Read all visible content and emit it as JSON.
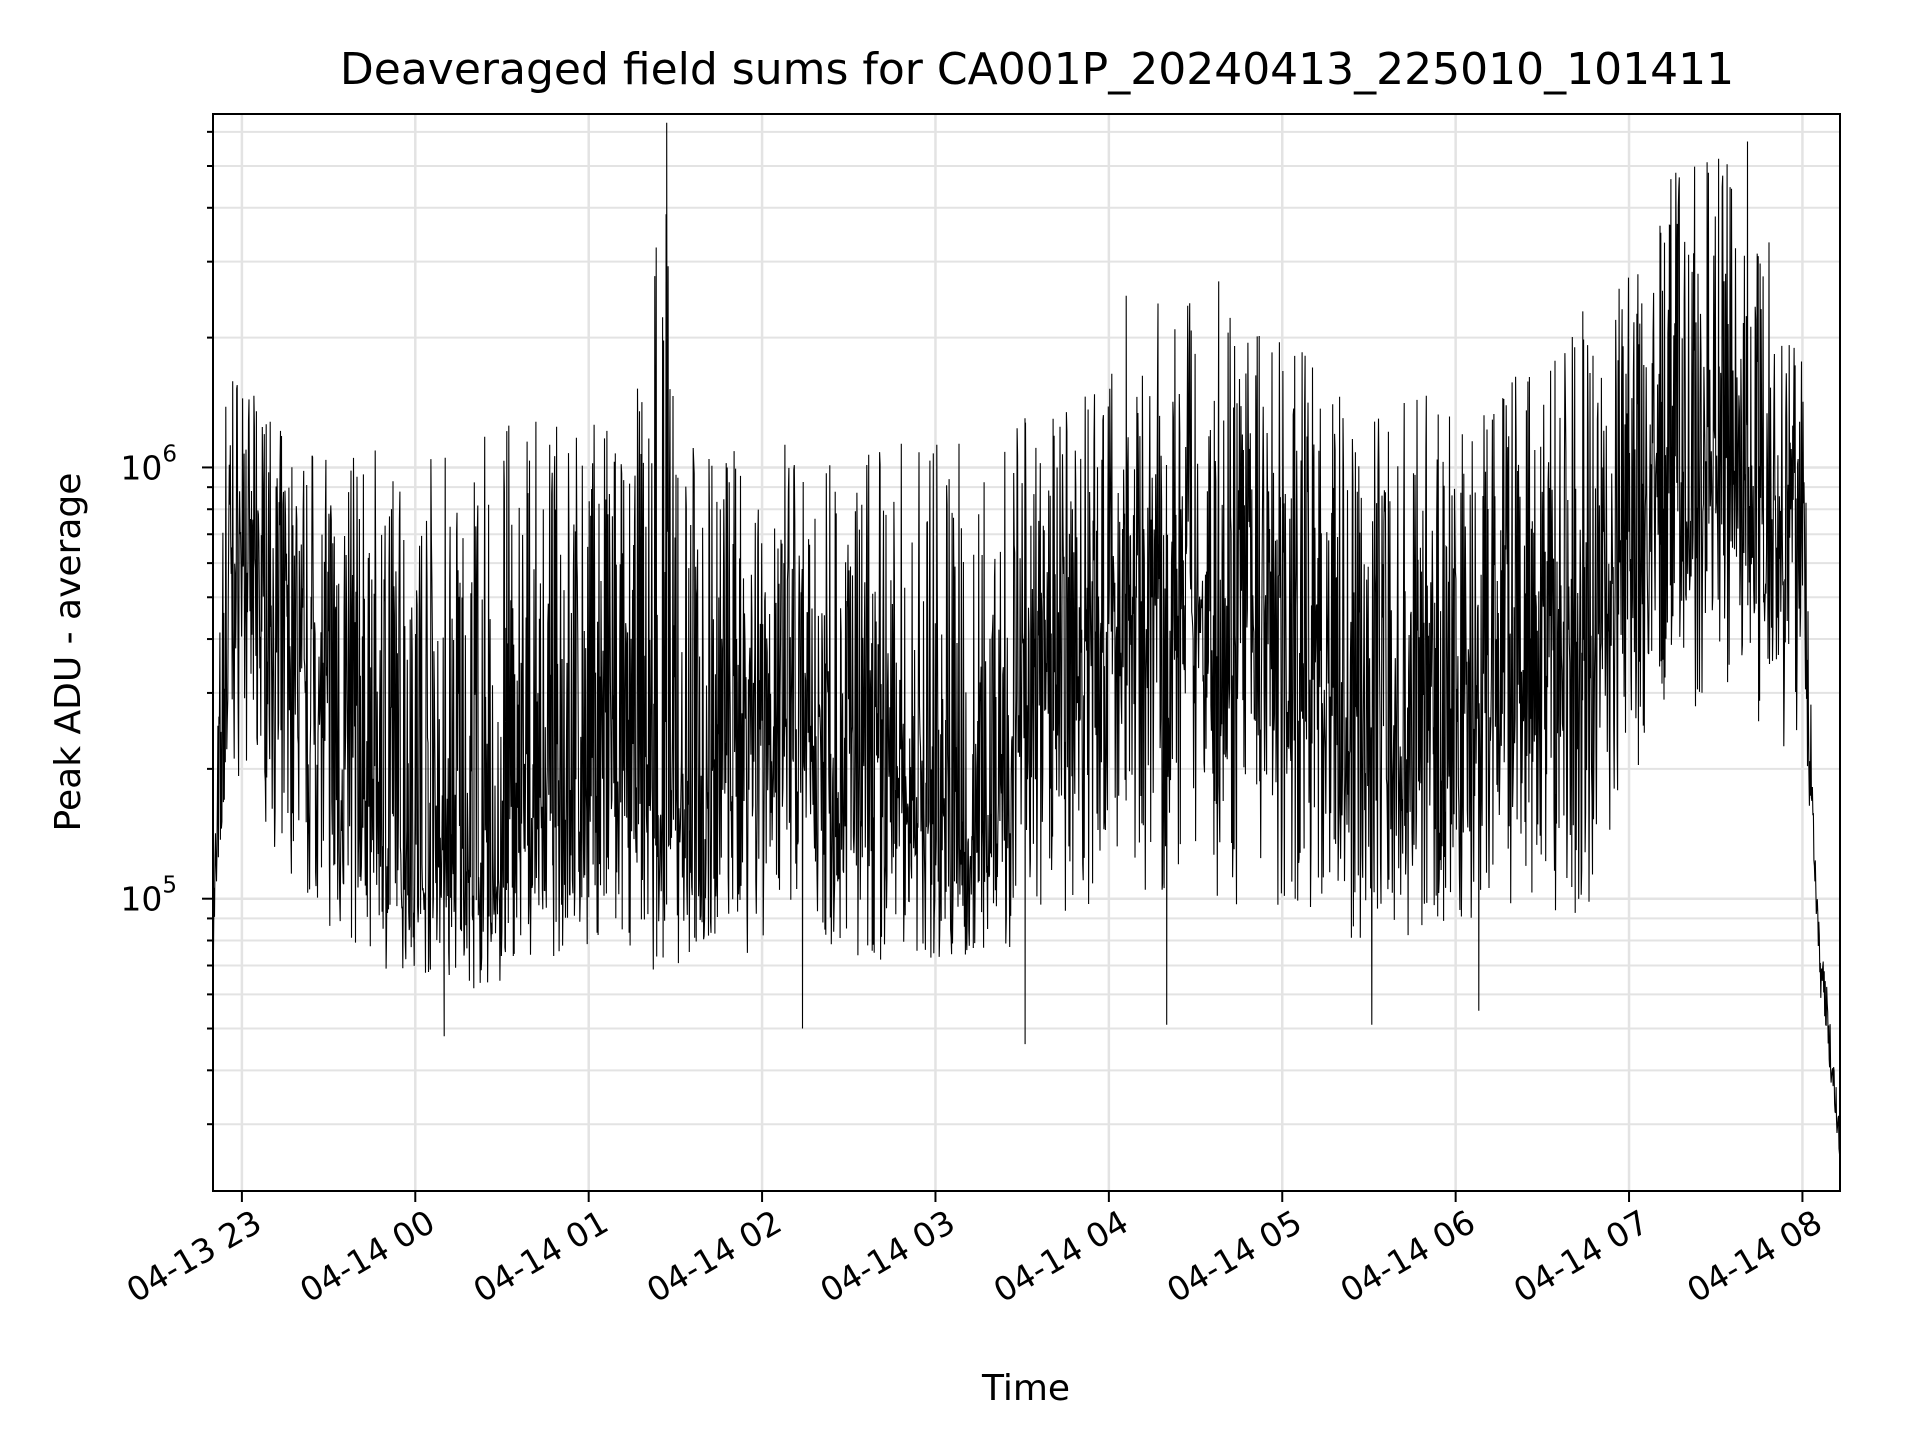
{
  "chart_data": {
    "type": "line",
    "title": "Deaveraged field sums for CA001P_20240413_225010_101411",
    "xlabel": "Time",
    "ylabel": "Peak ADU - average",
    "yscale": "log",
    "grid": true,
    "line_color": "#000000",
    "xlim": [
      "2024-04-13 22:50",
      "2024-04-14 08:13"
    ],
    "ylim": [
      21000,
      6600000
    ],
    "x_ticks": [
      {
        "value": "2024-04-13 23:00",
        "label": "04-13 23"
      },
      {
        "value": "2024-04-14 00:00",
        "label": "04-14 00"
      },
      {
        "value": "2024-04-14 01:00",
        "label": "04-14 01"
      },
      {
        "value": "2024-04-14 02:00",
        "label": "04-14 02"
      },
      {
        "value": "2024-04-14 03:00",
        "label": "04-14 03"
      },
      {
        "value": "2024-04-14 04:00",
        "label": "04-14 04"
      },
      {
        "value": "2024-04-14 05:00",
        "label": "04-14 05"
      },
      {
        "value": "2024-04-14 06:00",
        "label": "04-14 06"
      },
      {
        "value": "2024-04-14 07:00",
        "label": "04-14 07"
      },
      {
        "value": "2024-04-14 08:00",
        "label": "04-14 08"
      }
    ],
    "y_ticks": [
      {
        "value": 100000,
        "label": "10",
        "exp": "5"
      },
      {
        "value": 1000000,
        "label": "10",
        "exp": "6"
      }
    ],
    "series": [
      {
        "x": [
          "2024-04-13 22:50",
          "2024-04-13 22:55",
          "2024-04-13 23:00",
          "2024-04-13 23:15",
          "2024-04-13 23:30",
          "2024-04-13 23:45",
          "2024-04-14 00:00",
          "2024-04-14 00:15",
          "2024-04-14 00:30",
          "2024-04-14 00:45",
          "2024-04-14 01:00",
          "2024-04-14 01:15",
          "2024-04-14 01:27",
          "2024-04-14 01:30",
          "2024-04-14 01:45",
          "2024-04-14 02:00",
          "2024-04-14 02:15",
          "2024-04-14 02:30",
          "2024-04-14 02:45",
          "2024-04-14 03:00",
          "2024-04-14 03:15",
          "2024-04-14 03:30",
          "2024-04-14 03:45",
          "2024-04-14 04:00",
          "2024-04-14 04:15",
          "2024-04-14 04:30",
          "2024-04-14 04:45",
          "2024-04-14 05:00",
          "2024-04-14 05:15",
          "2024-04-14 05:30",
          "2024-04-14 05:45",
          "2024-04-14 06:00",
          "2024-04-14 06:15",
          "2024-04-14 06:30",
          "2024-04-14 06:45",
          "2024-04-14 07:00",
          "2024-04-14 07:15",
          "2024-04-14 07:30",
          "2024-04-14 07:45",
          "2024-04-14 08:00",
          "2024-04-14 08:05",
          "2024-04-14 08:13"
        ],
        "median": [
          80000,
          400000,
          650000,
          380000,
          250000,
          180000,
          140000,
          120000,
          110000,
          180000,
          220000,
          200000,
          180000,
          170000,
          200000,
          260000,
          230000,
          210000,
          190000,
          150000,
          130000,
          280000,
          330000,
          450000,
          500000,
          480000,
          420000,
          380000,
          300000,
          250000,
          240000,
          260000,
          280000,
          330000,
          350000,
          700000,
          950000,
          1100000,
          900000,
          650000,
          90000,
          25000
        ],
        "low": [
          70000,
          160000,
          200000,
          110000,
          80000,
          70000,
          65000,
          60000,
          60000,
          70000,
          75000,
          70000,
          65000,
          65000,
          70000,
          75000,
          70000,
          70000,
          70000,
          70000,
          70000,
          80000,
          85000,
          90000,
          95000,
          95000,
          90000,
          85000,
          80000,
          75000,
          75000,
          78000,
          80000,
          85000,
          90000,
          150000,
          250000,
          300000,
          250000,
          200000,
          70000,
          25000
        ],
        "high": [
          110000,
          2300000,
          1600000,
          1200000,
          1100000,
          1100000,
          1100000,
          1250000,
          1300000,
          1300000,
          1300000,
          1250000,
          6300000,
          1200000,
          1150000,
          1200000,
          1100000,
          1100000,
          1150000,
          1200000,
          1250000,
          1300000,
          1350000,
          1700000,
          1900000,
          2500000,
          2300000,
          2000000,
          1700000,
          1400000,
          1500000,
          1500000,
          1600000,
          1900000,
          2200000,
          3000000,
          5200000,
          5700000,
          4000000,
          2000000,
          110000,
          30000
        ],
        "peaks": [
          {
            "x": "2024-04-14 01:27",
            "y": 6300000
          },
          {
            "x": "2024-04-14 04:06",
            "y": 2500000
          },
          {
            "x": "2024-04-14 04:17",
            "y": 2400000
          },
          {
            "x": "2024-04-14 04:38",
            "y": 2700000
          },
          {
            "x": "2024-04-14 06:44",
            "y": 2300000
          },
          {
            "x": "2024-04-14 07:11",
            "y": 3500000
          },
          {
            "x": "2024-04-14 07:27",
            "y": 5100000
          },
          {
            "x": "2024-04-14 07:31",
            "y": 5200000
          },
          {
            "x": "2024-04-14 07:41",
            "y": 5700000
          }
        ],
        "dips": [
          {
            "x": "2024-04-14 00:10",
            "y": 48000
          },
          {
            "x": "2024-04-14 02:14",
            "y": 50000
          },
          {
            "x": "2024-04-14 03:31",
            "y": 46000
          },
          {
            "x": "2024-04-14 04:20",
            "y": 51000
          },
          {
            "x": "2024-04-14 05:31",
            "y": 51000
          },
          {
            "x": "2024-04-14 06:08",
            "y": 55000
          }
        ]
      }
    ]
  }
}
